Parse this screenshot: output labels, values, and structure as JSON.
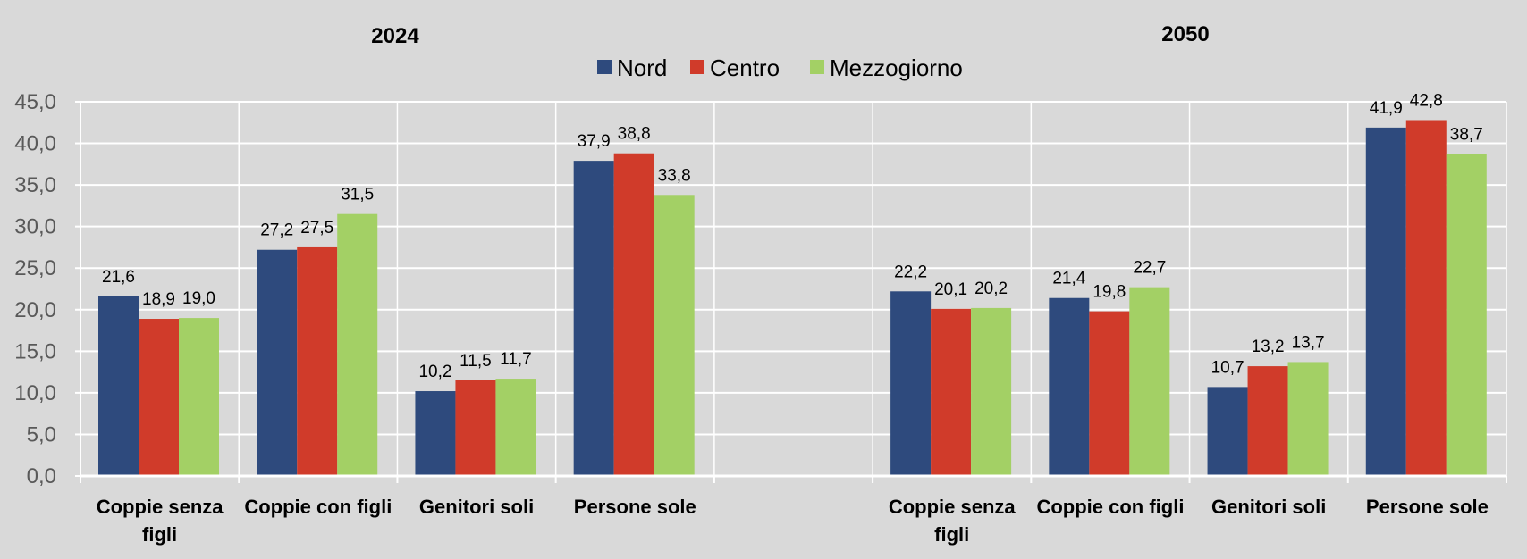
{
  "chart_data": {
    "type": "bar",
    "group_titles": [
      "2024",
      "2050"
    ],
    "categories": [
      [
        "Coppie senza",
        "figli"
      ],
      [
        "Coppie con figli"
      ],
      [
        "Genitori soli"
      ],
      [
        "Persone sole"
      ],
      [],
      [
        "Coppie senza",
        "figli"
      ],
      [
        "Coppie con figli"
      ],
      [
        "Genitori soli"
      ],
      [
        "Persone sole"
      ]
    ],
    "series": [
      {
        "name": "Nord",
        "color": "#2e4a7d",
        "values": [
          21.6,
          27.2,
          10.2,
          37.9,
          null,
          22.2,
          21.4,
          10.7,
          41.9
        ]
      },
      {
        "name": "Centro",
        "color": "#d03b2a",
        "values": [
          18.9,
          27.5,
          11.5,
          38.8,
          null,
          20.1,
          19.8,
          13.2,
          42.8
        ]
      },
      {
        "name": "Mezzogiorno",
        "color": "#a3d065",
        "values": [
          19.0,
          31.5,
          11.7,
          33.8,
          null,
          20.2,
          22.7,
          13.7,
          38.7
        ]
      }
    ],
    "data_labels": [
      [
        "21,6",
        "27,2",
        "10,2",
        "37,9",
        "",
        "22,2",
        "21,4",
        "10,7",
        "41,9"
      ],
      [
        "18,9",
        "27,5",
        "11,5",
        "38,8",
        "",
        "20,1",
        "19,8",
        "13,2",
        "42,8"
      ],
      [
        "19,0",
        "31,5",
        "11,7",
        "33,8",
        "",
        "20,2",
        "22,7",
        "13,7",
        "38,7"
      ]
    ],
    "y_ticks": [
      "0,0",
      "5,0",
      "10,0",
      "15,0",
      "20,0",
      "25,0",
      "30,0",
      "35,0",
      "40,0",
      "45,0"
    ],
    "ylim": [
      0,
      45
    ],
    "y_step": 5,
    "grid": true,
    "legend_position": "top-center"
  }
}
